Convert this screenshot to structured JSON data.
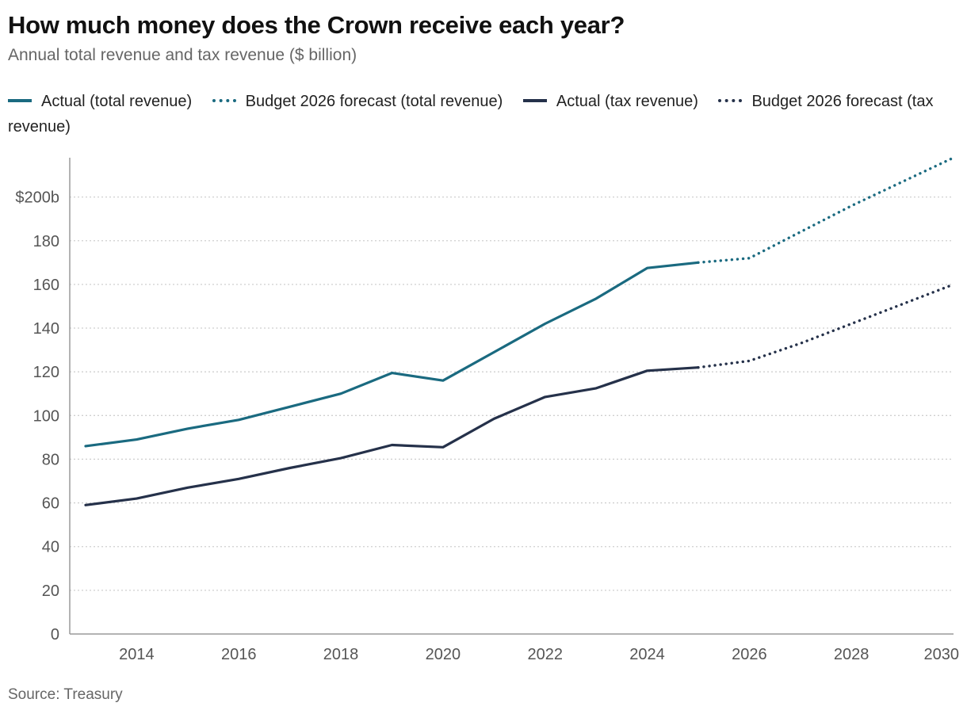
{
  "title": "How much money does the Crown receive each year?",
  "subtitle": "Annual total revenue and tax revenue ($ billion)",
  "source": "Source: Treasury",
  "legend": [
    {
      "label": "Actual (total revenue)",
      "style": "solid",
      "color": "#1a6a80"
    },
    {
      "label": "Budget 2026 forecast (total revenue)",
      "style": "dotted",
      "color": "#1a6a80"
    },
    {
      "label": "Actual (tax revenue)",
      "style": "solid",
      "color": "#25314a"
    },
    {
      "label": "Budget 2026 forecast (tax revenue)",
      "style": "dotted",
      "color": "#25314a"
    }
  ],
  "chart_data": {
    "type": "line",
    "xlabel": "",
    "ylabel": "",
    "xlim": [
      2013,
      2030
    ],
    "ylim": [
      0,
      218
    ],
    "x_ticks": [
      2014,
      2016,
      2018,
      2020,
      2022,
      2024,
      2026,
      2028,
      2030
    ],
    "y_ticks": [
      0,
      20,
      40,
      60,
      80,
      100,
      120,
      140,
      160,
      180,
      200
    ],
    "y_tick_labels": [
      "0",
      "20",
      "40",
      "60",
      "80",
      "100",
      "120",
      "140",
      "160",
      "180",
      "$200b"
    ],
    "grid": "horizontal dotted",
    "legend_position": "top",
    "series": [
      {
        "name": "Actual (total revenue)",
        "style": "solid",
        "color": "#1a6a80",
        "x": [
          2013,
          2014,
          2015,
          2016,
          2017,
          2018,
          2019,
          2020,
          2021,
          2022,
          2023,
          2024,
          2025
        ],
        "y": [
          86,
          89,
          94,
          98,
          104,
          110,
          119.5,
          116,
          129,
          142,
          153.5,
          167.5,
          170
        ]
      },
      {
        "name": "Budget 2026 forecast (total revenue)",
        "style": "dotted",
        "color": "#1a6a80",
        "x": [
          2025,
          2026,
          2027,
          2028,
          2029,
          2030
        ],
        "y": [
          170,
          172,
          184,
          196,
          207,
          218
        ]
      },
      {
        "name": "Actual (tax revenue)",
        "style": "solid",
        "color": "#25314a",
        "x": [
          2013,
          2014,
          2015,
          2016,
          2017,
          2018,
          2019,
          2020,
          2021,
          2022,
          2023,
          2024,
          2025
        ],
        "y": [
          59,
          62,
          67,
          71,
          76,
          80.5,
          86.5,
          85.5,
          98.5,
          108.5,
          112.5,
          120.5,
          122
        ]
      },
      {
        "name": "Budget 2026 forecast (tax revenue)",
        "style": "dotted",
        "color": "#25314a",
        "x": [
          2025,
          2026,
          2027,
          2028,
          2029,
          2030
        ],
        "y": [
          122,
          125,
          133,
          142,
          151,
          160
        ]
      }
    ]
  }
}
